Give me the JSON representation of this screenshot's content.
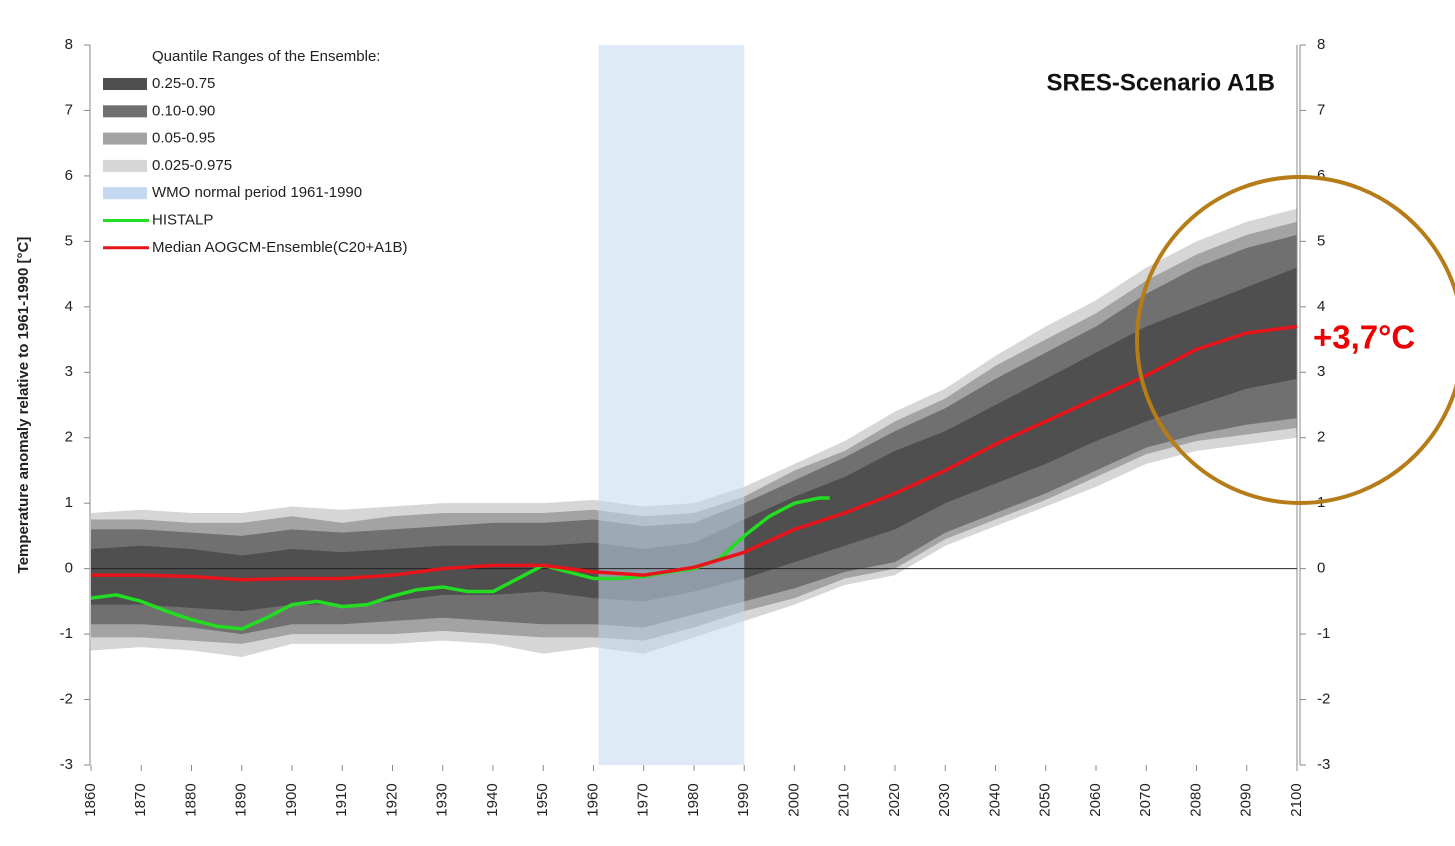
{
  "chart_data": {
    "type": "line",
    "title": "SRES-Scenario A1B",
    "y_label": "Temperature anomaly relative to 1961-1990 [°C]",
    "legend_title": "Quantile Ranges of the Ensemble:",
    "annotations": [
      "+3,7°C"
    ],
    "xlim": [
      1860,
      2100
    ],
    "xticks": [
      1860,
      1870,
      1880,
      1890,
      1900,
      1910,
      1920,
      1930,
      1940,
      1950,
      1960,
      1970,
      1980,
      1990,
      2000,
      2010,
      2020,
      2030,
      2040,
      2050,
      2060,
      2070,
      2080,
      2090,
      2100
    ],
    "ylim": [
      -3,
      8
    ],
    "yticks": [
      -3,
      -2,
      -1,
      0,
      1,
      2,
      3,
      4,
      5,
      6,
      7,
      8
    ],
    "y2lim": [
      -3,
      8
    ],
    "y2ticks": [
      -3,
      -2,
      -1,
      0,
      1,
      2,
      3,
      4,
      5,
      6,
      7,
      8
    ],
    "x": [
      1860,
      1870,
      1880,
      1890,
      1900,
      1910,
      1920,
      1930,
      1940,
      1950,
      1960,
      1970,
      1980,
      1990,
      2000,
      2010,
      2020,
      2030,
      2040,
      2050,
      2060,
      2070,
      2080,
      2090,
      2100
    ],
    "bands": [
      {
        "name": "0.25-0.75",
        "color": "#4f4f4f",
        "upper": [
          0.3,
          0.35,
          0.3,
          0.2,
          0.3,
          0.25,
          0.3,
          0.35,
          0.35,
          0.35,
          0.4,
          0.3,
          0.4,
          0.75,
          1.1,
          1.4,
          1.8,
          2.1,
          2.5,
          2.9,
          3.3,
          3.7,
          4.0,
          4.3,
          4.6
        ],
        "lower": [
          -0.55,
          -0.55,
          -0.6,
          -0.65,
          -0.55,
          -0.55,
          -0.5,
          -0.4,
          -0.4,
          -0.35,
          -0.45,
          -0.5,
          -0.35,
          -0.15,
          0.1,
          0.35,
          0.6,
          1.0,
          1.3,
          1.6,
          1.95,
          2.25,
          2.5,
          2.75,
          2.9
        ]
      },
      {
        "name": "0.10-0.90",
        "color": "#707070",
        "upper": [
          0.6,
          0.6,
          0.55,
          0.5,
          0.6,
          0.55,
          0.6,
          0.65,
          0.7,
          0.7,
          0.75,
          0.65,
          0.7,
          1.0,
          1.35,
          1.7,
          2.1,
          2.45,
          2.9,
          3.3,
          3.7,
          4.2,
          4.6,
          4.9,
          5.1
        ],
        "lower": [
          -0.85,
          -0.85,
          -0.9,
          -1.0,
          -0.85,
          -0.85,
          -0.8,
          -0.75,
          -0.8,
          -0.85,
          -0.85,
          -0.9,
          -0.7,
          -0.5,
          -0.3,
          -0.05,
          0.1,
          0.55,
          0.85,
          1.15,
          1.5,
          1.85,
          2.05,
          2.2,
          2.3
        ]
      },
      {
        "name": "0.05-0.95",
        "color": "#a3a3a3",
        "upper": [
          0.75,
          0.75,
          0.7,
          0.7,
          0.8,
          0.7,
          0.8,
          0.85,
          0.85,
          0.85,
          0.9,
          0.8,
          0.85,
          1.1,
          1.5,
          1.8,
          2.25,
          2.6,
          3.1,
          3.5,
          3.9,
          4.4,
          4.8,
          5.1,
          5.3
        ],
        "lower": [
          -1.05,
          -1.05,
          -1.1,
          -1.15,
          -1.0,
          -1.0,
          -1.0,
          -0.95,
          -1.0,
          -1.05,
          -1.05,
          -1.1,
          -0.9,
          -0.65,
          -0.45,
          -0.15,
          0.0,
          0.45,
          0.75,
          1.05,
          1.4,
          1.75,
          1.95,
          2.05,
          2.15
        ]
      },
      {
        "name": "0.025-0.975",
        "color": "#d6d6d6",
        "upper": [
          0.85,
          0.9,
          0.85,
          0.85,
          0.95,
          0.9,
          0.95,
          1.0,
          1.0,
          1.0,
          1.05,
          0.95,
          1.0,
          1.25,
          1.6,
          1.95,
          2.4,
          2.75,
          3.25,
          3.7,
          4.1,
          4.6,
          5.0,
          5.3,
          5.5
        ],
        "lower": [
          -1.25,
          -1.2,
          -1.25,
          -1.35,
          -1.15,
          -1.15,
          -1.15,
          -1.1,
          -1.15,
          -1.3,
          -1.2,
          -1.3,
          -1.05,
          -0.8,
          -0.55,
          -0.25,
          -0.1,
          0.35,
          0.65,
          0.95,
          1.25,
          1.6,
          1.8,
          1.9,
          2.0
        ]
      }
    ],
    "span": {
      "name": "WMO normal period 1961-1990",
      "color": "#c5d8f1",
      "range": [
        1961,
        1990
      ]
    },
    "series": [
      {
        "name": "HISTALP",
        "color": "#22dd22",
        "x": [
          1860,
          1865,
          1870,
          1875,
          1880,
          1885,
          1890,
          1895,
          1900,
          1905,
          1910,
          1915,
          1920,
          1925,
          1930,
          1935,
          1940,
          1945,
          1950,
          1955,
          1960,
          1965,
          1970,
          1975,
          1980,
          1985,
          1990,
          1995,
          2000,
          2005,
          2007
        ],
        "values": [
          -0.45,
          -0.4,
          -0.5,
          -0.65,
          -0.78,
          -0.88,
          -0.92,
          -0.75,
          -0.55,
          -0.5,
          -0.58,
          -0.55,
          -0.42,
          -0.32,
          -0.28,
          -0.35,
          -0.35,
          -0.15,
          0.05,
          -0.05,
          -0.15,
          -0.15,
          -0.12,
          -0.05,
          0.0,
          0.15,
          0.5,
          0.8,
          1.0,
          1.08,
          1.08
        ]
      },
      {
        "name": "Median AOGCM-Ensemble(C20+A1B)",
        "color": "#e8141b",
        "x": [
          1860,
          1870,
          1880,
          1890,
          1900,
          1910,
          1920,
          1930,
          1940,
          1950,
          1960,
          1970,
          1980,
          1990,
          2000,
          2010,
          2020,
          2030,
          2040,
          2050,
          2060,
          2070,
          2080,
          2090,
          2100
        ],
        "values": [
          -0.1,
          -0.1,
          -0.12,
          -0.17,
          -0.15,
          -0.15,
          -0.1,
          0.0,
          0.05,
          0.05,
          -0.05,
          -0.1,
          0.02,
          0.25,
          0.6,
          0.85,
          1.15,
          1.5,
          1.9,
          2.25,
          2.6,
          2.95,
          3.35,
          3.6,
          3.7
        ]
      }
    ]
  }
}
